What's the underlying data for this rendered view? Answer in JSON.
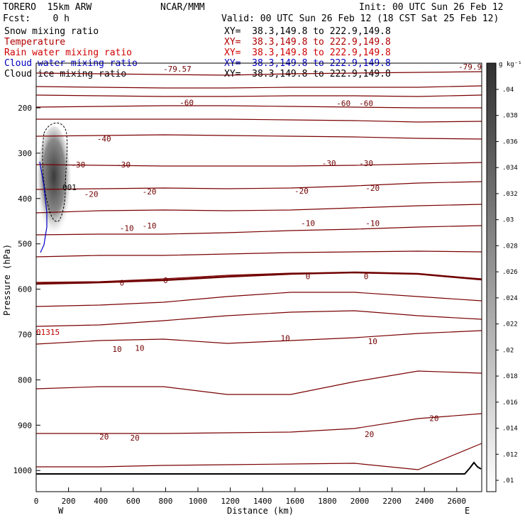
{
  "header": {
    "model": "TORERO  15km ARW",
    "org": "NCAR/MMM",
    "init": "Init: 00 UTC Sun 26 Feb 12",
    "fcst": "Fcst:    0 h",
    "valid": "Valid: 00 UTC Sun 26 Feb 12 (18 CST Sat 25 Feb 12)"
  },
  "fields": [
    {
      "name": "Snow mixing ratio",
      "xy": "XY=  38.3,149.8 to 222.9,149.8",
      "color": "#000000"
    },
    {
      "name": "Temperature",
      "xy": "XY=  38.3,149.8 to 222.9,149.8",
      "color": "#b00000"
    },
    {
      "name": "Rain water mixing ratio",
      "xy": "XY=  38.3,149.8 to 222.9,149.8",
      "color": "#d00000"
    },
    {
      "name": "Cloud water mixing ratio",
      "xy": "XY=  38.3,149.8 to 222.9,149.8",
      "color": "#0000c0"
    },
    {
      "name": "Cloud ice mixing ratio",
      "xy": "XY=  38.3,149.8 to 222.9,149.8",
      "color": "#000000"
    }
  ],
  "chart_data": {
    "type": "line",
    "title": "",
    "xlabel": "Distance (km)",
    "ylabel": "Pressure (hPa)",
    "xlim": [
      0,
      2760
    ],
    "ylim": [
      1050,
      100
    ],
    "x_ticks": [
      0,
      200,
      400,
      600,
      800,
      1000,
      1200,
      1400,
      1600,
      1800,
      2000,
      2200,
      2400,
      2600
    ],
    "y_ticks": [
      200,
      300,
      400,
      500,
      600,
      700,
      800,
      900,
      1000
    ],
    "left_end_label": "W",
    "right_end_label": "E",
    "top_corner_labels": [
      "-79.57",
      "-79.9"
    ],
    "isotherm_labels": [
      {
        "x": 930,
        "p": 188,
        "text": "-60"
      },
      {
        "x": 1900,
        "p": 190,
        "text": "-60"
      },
      {
        "x": 2040,
        "p": 190,
        "text": "-60"
      },
      {
        "x": 420,
        "p": 268,
        "text": "-40"
      },
      {
        "x": 260,
        "p": 325,
        "text": "-30"
      },
      {
        "x": 540,
        "p": 325,
        "text": "-30"
      },
      {
        "x": 1810,
        "p": 322,
        "text": "-30"
      },
      {
        "x": 2040,
        "p": 322,
        "text": "-30"
      },
      {
        "x": 340,
        "p": 390,
        "text": "-20"
      },
      {
        "x": 700,
        "p": 385,
        "text": "-20"
      },
      {
        "x": 1640,
        "p": 383,
        "text": "-20"
      },
      {
        "x": 2080,
        "p": 377,
        "text": "-20"
      },
      {
        "x": 560,
        "p": 465,
        "text": "-10"
      },
      {
        "x": 700,
        "p": 460,
        "text": "-10"
      },
      {
        "x": 1680,
        "p": 454,
        "text": "-10"
      },
      {
        "x": 2080,
        "p": 454,
        "text": "-10"
      },
      {
        "x": 530,
        "p": 586,
        "text": "0"
      },
      {
        "x": 800,
        "p": 580,
        "text": "0"
      },
      {
        "x": 1680,
        "p": 572,
        "text": "0"
      },
      {
        "x": 2040,
        "p": 572,
        "text": "0"
      },
      {
        "x": 500,
        "p": 732,
        "text": "10"
      },
      {
        "x": 640,
        "p": 730,
        "text": "10"
      },
      {
        "x": 1540,
        "p": 708,
        "text": "10"
      },
      {
        "x": 2080,
        "p": 715,
        "text": "10"
      },
      {
        "x": 420,
        "p": 925,
        "text": "20"
      },
      {
        "x": 610,
        "p": 928,
        "text": "20"
      },
      {
        "x": 2060,
        "p": 920,
        "text": "20"
      },
      {
        "x": 2460,
        "p": 885,
        "text": "20"
      }
    ],
    "snow_contour_label": "001",
    "marker_label": "01315",
    "colorbar": {
      "unit": "g kg⁻¹",
      "ticks": [
        ".04",
        ".038",
        ".036",
        ".034",
        ".032",
        ".03",
        ".028",
        ".026",
        ".024",
        ".022",
        ".02",
        ".018",
        ".016",
        ".014",
        ".012",
        ".01"
      ]
    }
  }
}
